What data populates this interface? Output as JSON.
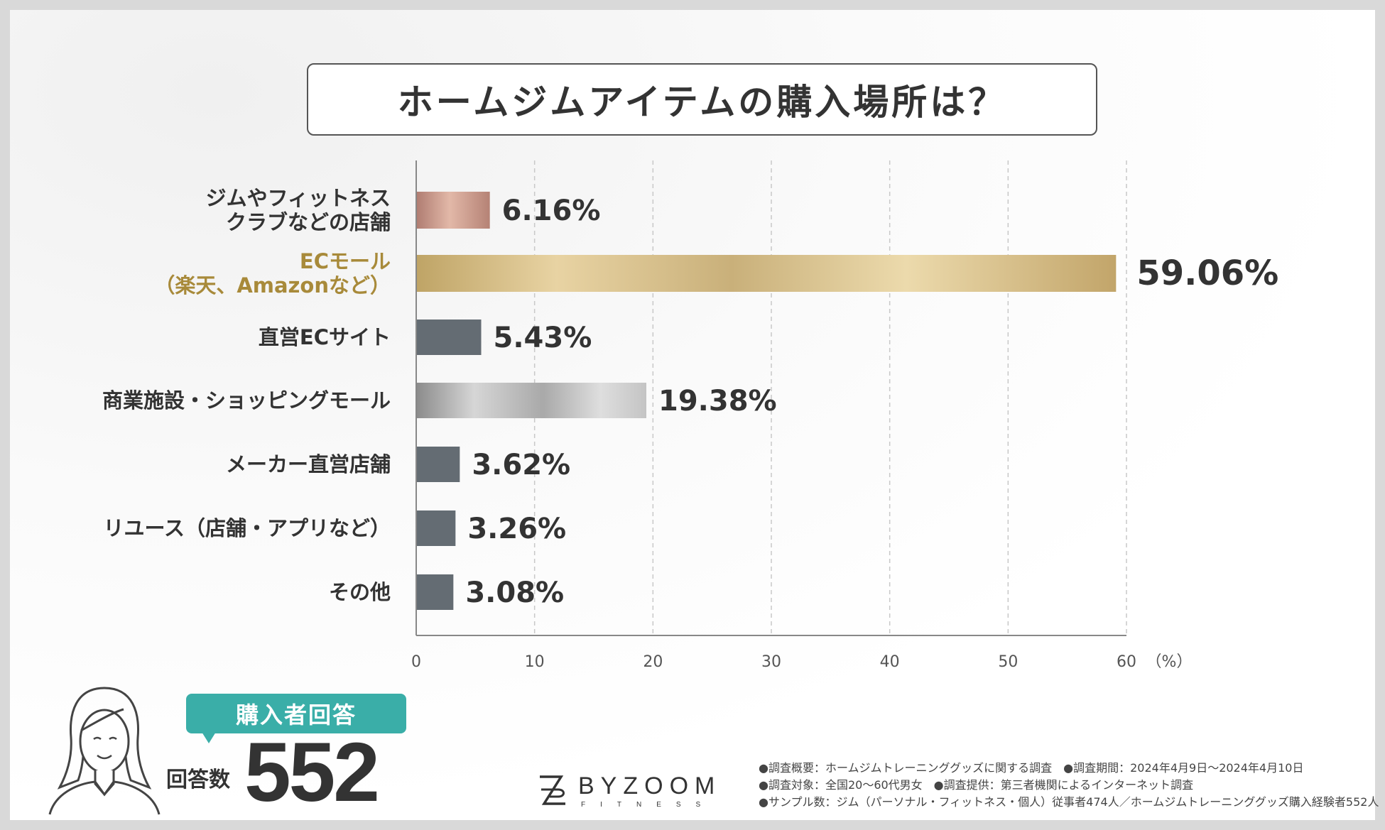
{
  "title": "ホームジムアイテムの購入場所は？",
  "chart_data": {
    "type": "bar",
    "orientation": "horizontal",
    "title": "ホームジムアイテムの購入場所は？",
    "categories": [
      "ジムやフィットネス\nクラブなどの店舗",
      "ECモール\n（楽天、Amazonなど）",
      "直営ECサイト",
      "商業施設・ショッピングモール",
      "メーカー直営店舗",
      "リユース（店舗・アプリなど）",
      "その他"
    ],
    "values": [
      6.16,
      59.06,
      5.43,
      19.38,
      3.62,
      3.26,
      3.08
    ],
    "value_labels": [
      "6.16%",
      "59.06%",
      "5.43%",
      "19.38%",
      "3.62%",
      "3.26%",
      "3.08%"
    ],
    "highlight_index": 1,
    "bar_colors": [
      "#c9978a",
      "#d4b97a",
      "#646c73",
      "#b8b8b8",
      "#646c73",
      "#646c73",
      "#646c73"
    ],
    "xlim": [
      0,
      60
    ],
    "xticks": [
      0,
      10,
      20,
      30,
      40,
      50,
      60
    ],
    "xunit": "（%）",
    "grid": true
  },
  "respondents": {
    "badge": "購入者回答",
    "count_label": "回答数",
    "count": "552"
  },
  "logo": {
    "name": "BYZOOM",
    "sub": "FITNESS"
  },
  "notes": [
    "●調査概要：ホームジムトレーニンググッズに関する調査　●調査期間：2024年4月9日〜2024年4月10日",
    "●調査対象：全国20〜60代男女　●調査提供：第三者機関によるインターネット調査",
    "●サンプル数：ジム（パーソナル・フィットネス・個人）従事者474人／ホームジムトレーニンググッズ購入経験者552人"
  ]
}
